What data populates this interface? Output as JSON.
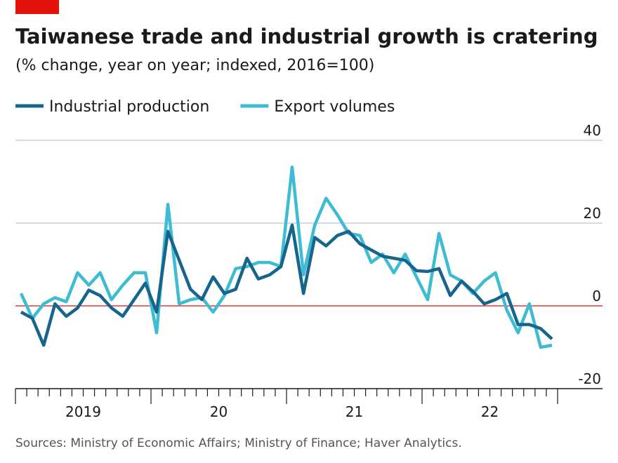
{
  "chart_data": {
    "type": "line",
    "title": "Taiwanese trade and industrial growth is cratering",
    "subtitle": "(% change, year on year; indexed, 2016=100)",
    "source": "Sources: Ministry of Economic Affairs; Ministry of Finance; Haver Analytics.",
    "x": [
      0.5,
      1.5,
      2.5,
      3.5,
      4.5,
      5.5,
      6.5,
      7.5,
      8.5,
      9.5,
      10.5,
      11.5,
      12.5,
      13.5,
      14.5,
      15.5,
      16.5,
      17.5,
      18.5,
      19.5,
      20.5,
      21.5,
      22.5,
      23.5,
      24.5,
      25.5,
      26.5,
      27.5,
      28.5,
      29.5,
      30.5,
      31.5,
      32.5,
      33.5,
      34.5,
      35.5,
      36.5,
      37.5,
      38.5,
      39.5,
      40.5,
      41.5,
      42.5,
      43.5,
      44.5,
      45.5,
      46.5,
      47.5
    ],
    "xlim": [
      0,
      48
    ],
    "xticks": [
      {
        "value": 6,
        "label": "2019"
      },
      {
        "value": 18,
        "label": "20"
      },
      {
        "value": 30,
        "label": "21"
      },
      {
        "value": 42,
        "label": "22"
      }
    ],
    "ylim": [
      -20,
      40
    ],
    "yticks": [
      -20,
      0,
      20,
      40
    ],
    "grid": true,
    "series": [
      {
        "name": "Industrial production",
        "color": "#17648d",
        "values": [
          -1.5,
          -3,
          -9.5,
          0.5,
          -2.5,
          -0.5,
          3.8,
          2.5,
          -0.5,
          -2.5,
          1.5,
          5.5,
          -1.5,
          18,
          11,
          4,
          1.5,
          7,
          3,
          4,
          11.5,
          6.5,
          7.5,
          9.5,
          19.5,
          3,
          16.5,
          14.5,
          17,
          18,
          15,
          13.5,
          12,
          11.5,
          11,
          8.5,
          8.3,
          9,
          2.5,
          6,
          3.5,
          0.5,
          1.5,
          3,
          -4.5,
          -4.5,
          -5.5,
          -8
        ]
      },
      {
        "name": "Export volumes",
        "color": "#3ebcd2",
        "values": [
          3,
          -3,
          0.5,
          2,
          1,
          8,
          5,
          8,
          1.5,
          5,
          8,
          8,
          -6.5,
          24.5,
          0.5,
          1.5,
          2,
          -1.5,
          2.5,
          9,
          9.5,
          10.5,
          10.5,
          9.5,
          33.5,
          7.5,
          19.5,
          26,
          22,
          17.5,
          17,
          10.5,
          12.5,
          8,
          12.5,
          7,
          1.5,
          17.5,
          7.5,
          6,
          3,
          6,
          8,
          -1,
          -6.5,
          0.5,
          -10,
          -9.5
        ]
      }
    ]
  }
}
